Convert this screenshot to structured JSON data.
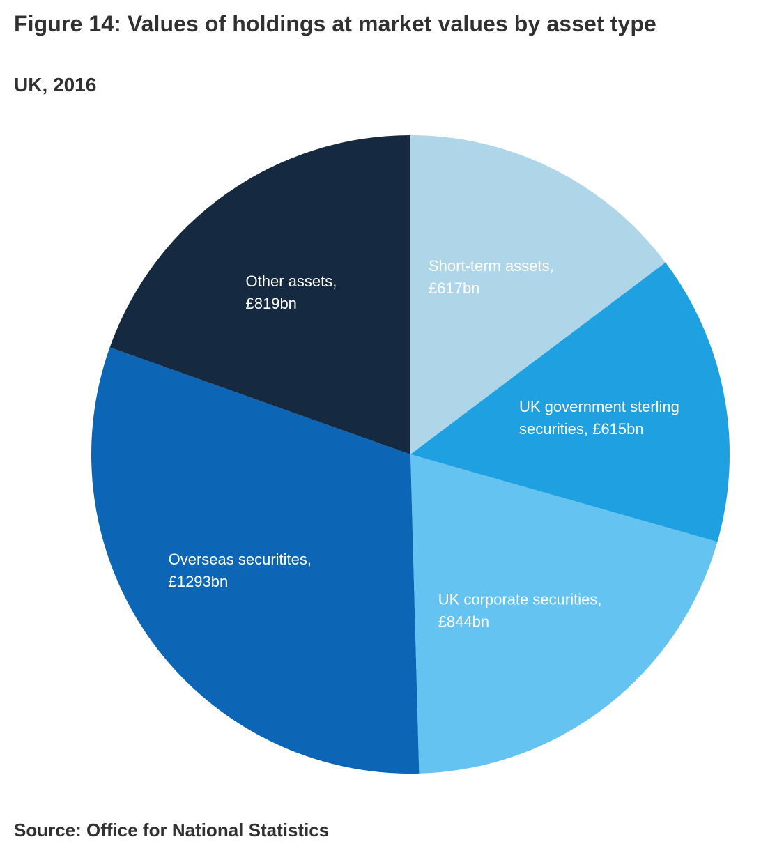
{
  "title": "Figure 14: Values of holdings at market values by asset type",
  "subtitle": "UK, 2016",
  "source": "Source: Office for National Statistics",
  "chart_data": {
    "type": "pie",
    "title": "Figure 14: Values of holdings at market values by asset type",
    "subtitle": "UK, 2016",
    "unit": "£bn",
    "slices": [
      {
        "label": "Short-term assets",
        "value": 617,
        "value_label": "£617bn",
        "color": "#aed5e8",
        "label_lines": [
          "Short-term assets,",
          "£617bn"
        ]
      },
      {
        "label": "UK government sterling securities",
        "value": 615,
        "value_label": "£615bn",
        "color": "#1fa0e0",
        "label_lines": [
          "UK government sterling",
          "securities, £615bn"
        ]
      },
      {
        "label": "UK corporate securities",
        "value": 844,
        "value_label": "£844bn",
        "color": "#64c3f0",
        "label_lines": [
          "UK corporate securities,",
          "£844bn"
        ]
      },
      {
        "label": "Overseas securitites",
        "value": 1293,
        "value_label": "£1293bn",
        "color": "#0d66b5",
        "label_lines": [
          "Overseas securitites,",
          "£1293bn"
        ]
      },
      {
        "label": "Other assets",
        "value": 819,
        "value_label": "£819bn",
        "color": "#152a41",
        "label_lines": [
          "Other assets,",
          "£819bn"
        ]
      }
    ],
    "start_angle": "12 o'clock",
    "direction": "clockwise",
    "legend": "none",
    "labels_inside_slices": true
  }
}
